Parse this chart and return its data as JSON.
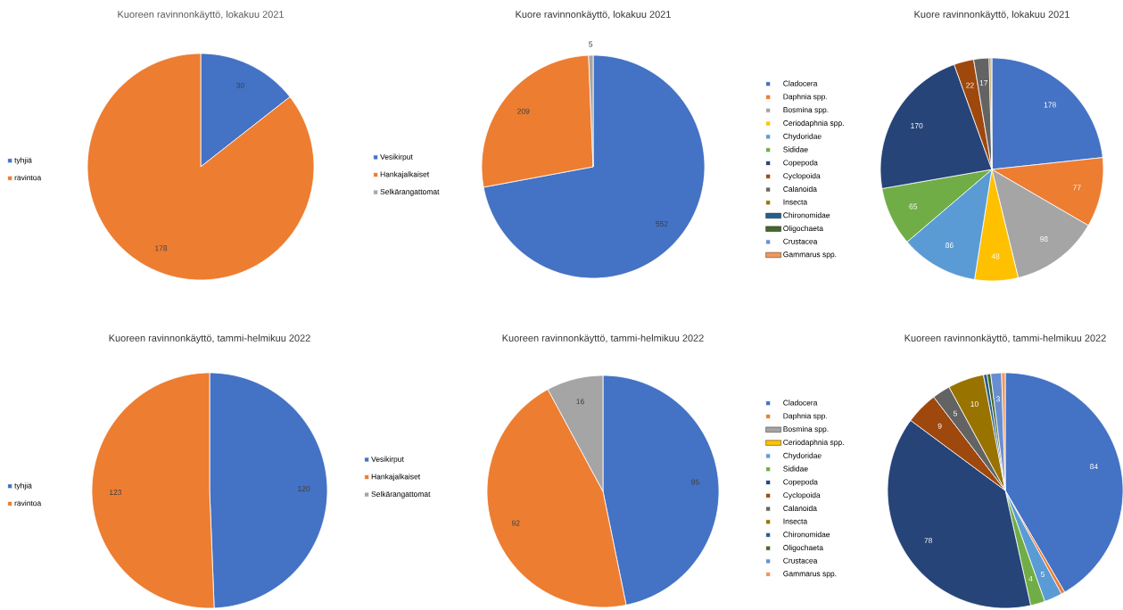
{
  "chart_data": [
    {
      "type": "pie",
      "title": "Kuoreen ravinnonkäyttö, lokakuu 2021",
      "categories": [
        "tyhjiä",
        "ravintoa"
      ],
      "values": [
        30,
        178
      ],
      "colors": [
        "#4472c4",
        "#ed7d31"
      ],
      "legend": "left",
      "data_labels": true
    },
    {
      "type": "pie",
      "title": "Kuore ravinnonkäyttö, lokakuu 2021",
      "categories": [
        "Vesikirput",
        "Hankajalkaiset",
        "Selkärangattomat"
      ],
      "values": [
        552,
        209,
        5
      ],
      "colors": [
        "#4472c4",
        "#ed7d31",
        "#a5a5a5"
      ],
      "legend": "left",
      "data_labels": true
    },
    {
      "type": "pie",
      "title": "Kuore ravinnonkäyttö, lokakuu 2021",
      "categories": [
        "Cladocera",
        "Daphnia spp.",
        "Bosmina spp.",
        "Ceriodaphnia spp.",
        "Chydoridae",
        "Sididae",
        "Copepoda",
        "Cyclopoida",
        "Calanoida",
        "Insecta",
        "Chironomidae",
        "Oligochaeta",
        "Crustacea",
        "Gammarus spp."
      ],
      "values": [
        178,
        77,
        98,
        48,
        86,
        65,
        170,
        22,
        17,
        2,
        0,
        0,
        1,
        0
      ],
      "colors": [
        "#4472c4",
        "#ed7d31",
        "#a5a5a5",
        "#ffc000",
        "#5b9bd5",
        "#70ad47",
        "#264478",
        "#9e480e",
        "#636363",
        "#997300",
        "#255e91",
        "#43682b",
        "#698ed0",
        "#f1975a"
      ],
      "legend": "left",
      "value_labels": [
        "178",
        "77",
        "98",
        "48",
        "86",
        "65",
        "170",
        "22",
        "17",
        null,
        null,
        null,
        null,
        null
      ]
    },
    {
      "type": "pie",
      "title": "Kuoreen ravinnonkäyttö, tammi-helmikuu 2022",
      "categories": [
        "tyhjiä",
        "ravintoa"
      ],
      "values": [
        120,
        123
      ],
      "colors": [
        "#4472c4",
        "#ed7d31"
      ],
      "legend": "left",
      "data_labels": true
    },
    {
      "type": "pie",
      "title": "Kuoreen ravinnonkäyttö, tammi-helmikuu 2022",
      "categories": [
        "Vesikirput",
        "Hankajalkaiset",
        "Selkärangattomat"
      ],
      "values": [
        95,
        92,
        16
      ],
      "colors": [
        "#4472c4",
        "#ed7d31",
        "#a5a5a5"
      ],
      "legend": "left",
      "data_labels": true
    },
    {
      "type": "pie",
      "title": "Kuoreen ravinnonkäyttö, tammi-helmikuu 2022",
      "categories": [
        "Cladocera",
        "Daphnia spp.",
        "Bosmina spp.",
        "Ceriodaphnia spp.",
        "Chydoridae",
        "Sididae",
        "Copepoda",
        "Cyclopoida",
        "Calanoida",
        "Insecta",
        "Chironomidae",
        "Oligochaeta",
        "Crustacea",
        "Gammarus spp."
      ],
      "values": [
        84,
        1,
        0,
        0,
        5,
        4,
        78,
        9,
        5,
        10,
        1,
        1,
        3,
        1
      ],
      "colors": [
        "#4472c4",
        "#ed7d31",
        "#a5a5a5",
        "#ffc000",
        "#5b9bd5",
        "#70ad47",
        "#264478",
        "#9e480e",
        "#636363",
        "#997300",
        "#255e91",
        "#43682b",
        "#698ed0",
        "#f1975a"
      ],
      "legend": "left",
      "value_labels": [
        "84",
        null,
        null,
        null,
        "5",
        "4",
        "78",
        "9",
        "5",
        "10",
        null,
        null,
        "3",
        null
      ]
    }
  ]
}
